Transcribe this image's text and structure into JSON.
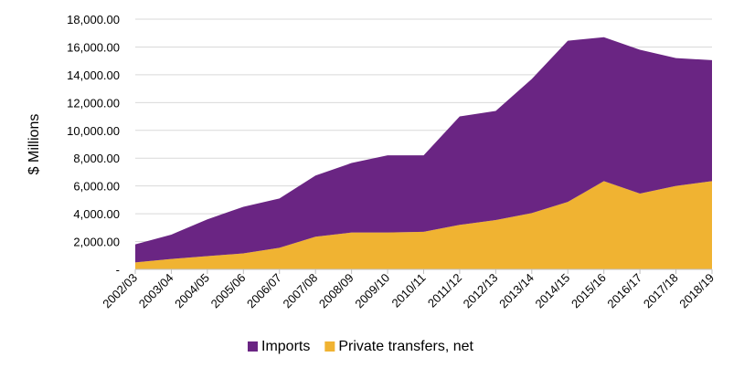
{
  "chart_data": {
    "type": "area",
    "stacked": true,
    "title": "",
    "xlabel": "",
    "ylabel": "$ Millions",
    "ylim": [
      0,
      18000
    ],
    "yticks": [
      0,
      2000,
      4000,
      6000,
      8000,
      10000,
      12000,
      14000,
      16000,
      18000
    ],
    "ytick_labels": [
      "-",
      "2,000.00",
      "4,000.00",
      "6,000.00",
      "8,000.00",
      "10,000.00",
      "12,000.00",
      "14,000.00",
      "16,000.00",
      "18,000.00"
    ],
    "grid": true,
    "legend_position": "bottom",
    "categories": [
      "2002/03",
      "2003/04",
      "2004/05",
      "2005/06",
      "2006/07",
      "2007/08",
      "2008/09",
      "2009/10",
      "2010/11",
      "2011/12",
      "2012/13",
      "2013/14",
      "2014/15",
      "2015/16",
      "2016/17",
      "2017/18",
      "2018/19"
    ],
    "series": [
      {
        "name": "Private transfers, net",
        "color": "#f0b332",
        "values": [
          500,
          750,
          950,
          1150,
          1550,
          2350,
          2650,
          2650,
          2700,
          3200,
          3550,
          4050,
          4850,
          6350,
          5450,
          6000,
          6350
        ]
      },
      {
        "name": "Imports",
        "color": "#6a2583",
        "values": [
          1300,
          1750,
          2650,
          3350,
          3550,
          4400,
          5000,
          5550,
          5500,
          7800,
          7850,
          9650,
          11600,
          10350,
          10350,
          9200,
          8700
        ]
      }
    ]
  }
}
